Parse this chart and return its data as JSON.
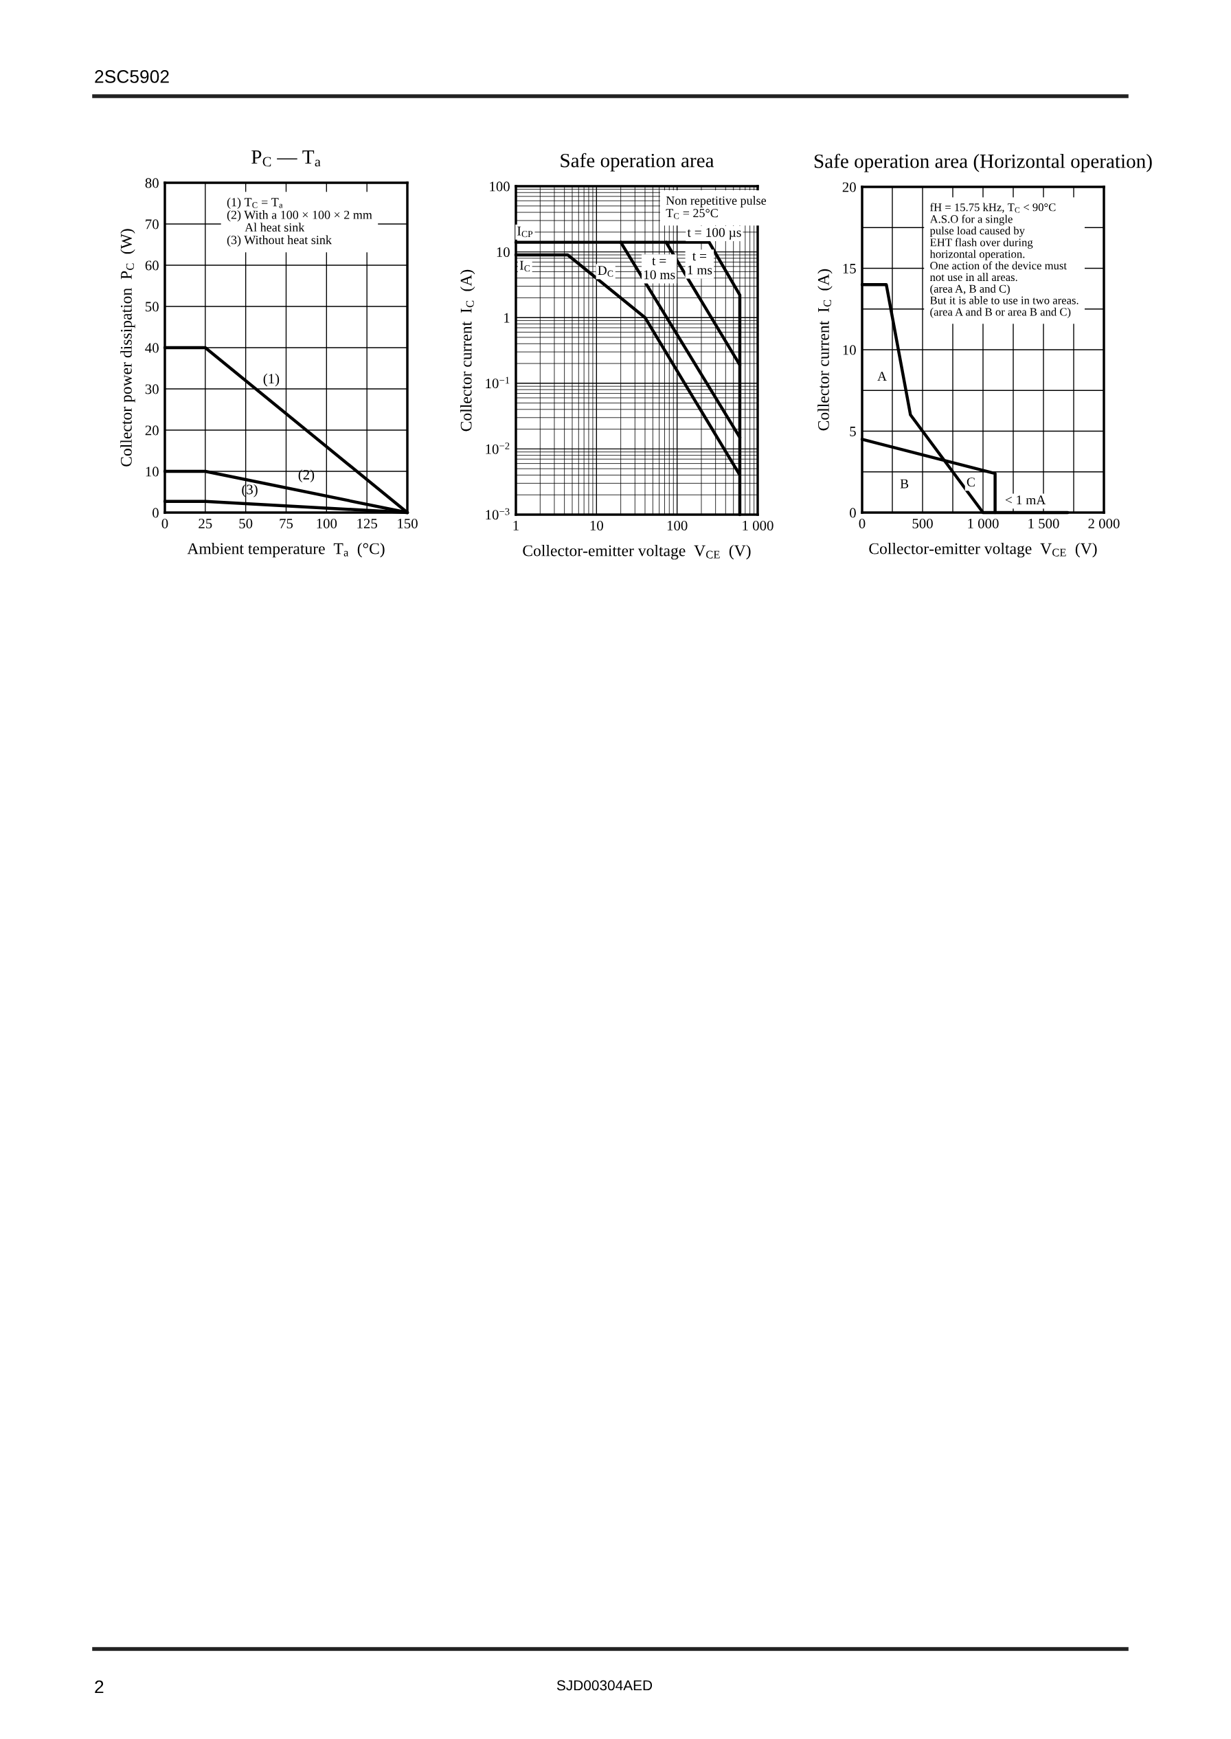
{
  "chart_data": [
    {
      "type": "line",
      "title": "P$_{C}$ — T$_{a}$",
      "xlabel": "Ambient temperature  T$_{a}$  (°C)",
      "ylabel": "Collector power dissipation  P$_{C}$  (W)",
      "xlim": [
        0,
        150
      ],
      "ylim": [
        0,
        80
      ],
      "xticks": [
        0,
        25,
        50,
        75,
        100,
        125,
        150
      ],
      "yticks": [
        0,
        10,
        20,
        30,
        40,
        50,
        60,
        70,
        80
      ],
      "grid": true,
      "series": [
        {
          "name": "(1)",
          "color": "#000000",
          "x": [
            0,
            25,
            150
          ],
          "values": [
            40,
            40,
            0
          ]
        },
        {
          "name": "(2)",
          "color": "#000000",
          "x": [
            0,
            25,
            150
          ],
          "values": [
            10,
            10,
            0
          ]
        },
        {
          "name": "(3)",
          "color": "#000000",
          "x": [
            0,
            25,
            150
          ],
          "values": [
            2.7,
            2.7,
            0
          ]
        }
      ],
      "annotations": [
        "(1) T$_{C}$ = T$_{a}$\n(2) With a 100 × 100 × 2 mm\n      Al heat sink\n(3) Without heat sink",
        "2SC5902",
        "2",
        "SJD00304AED"
      ]
    },
    {
      "type": "line",
      "title": "Safe operation area",
      "xlabel": "Collector-emitter voltage  V$_{CE}$  (V)",
      "ylabel": "Collector current  I$_{C}$  (A)",
      "log": "xy",
      "xlim": [
        1,
        1000
      ],
      "ylim": [
        0.001,
        100
      ],
      "xticks": [
        1,
        10,
        100,
        {
          "value": 1000,
          "label": "1 000"
        }
      ],
      "yticks": [
        {
          "value": 0.001,
          "label": "10$^{−3}$"
        },
        {
          "value": 0.01,
          "label": "10$^{−2}$"
        },
        {
          "value": 0.1,
          "label": "10$^{−1}$"
        },
        1,
        10,
        100
      ],
      "grid": true,
      "series": [
        {
          "color": "#000000",
          "x": [
            1,
            250,
            600,
            600
          ],
          "values": [
            14,
            14,
            2.2,
            0.001
          ]
        },
        {
          "color": "#000000",
          "x": [
            73,
            600
          ],
          "values": [
            14,
            0.19
          ]
        },
        {
          "color": "#000000",
          "x": [
            20,
            600
          ],
          "values": [
            14,
            0.015
          ]
        },
        {
          "color": "#000000",
          "x": [
            1,
            4.4,
            40,
            600
          ],
          "values": [
            9,
            9,
            1,
            0.004
          ]
        }
      ],
      "annotations": [
        "Non repetitive pulse\nT$_{C}$ = 25°C",
        "I$_{CP}$",
        "I$_{C}$",
        "D$_{C}$",
        "t =\n10 ms",
        "t =\n1 ms",
        "t = 100 µs"
      ]
    },
    {
      "type": "line",
      "title": "Safe operation area (Horizontal operation)",
      "xlabel": "Collector-emitter voltage  V$_{CE}$  (V)",
      "ylabel": "Collector current  I$_{C}$  (A)",
      "xlim": [
        0,
        2000
      ],
      "ylim": [
        0,
        20
      ],
      "xticks": [
        0,
        {
          "value": 250,
          "label": null
        },
        500,
        {
          "value": 750,
          "label": null
        },
        {
          "value": 1000,
          "label": "1 000"
        },
        {
          "value": 1250,
          "label": null
        },
        {
          "value": 1500,
          "label": "1 500"
        },
        {
          "value": 1750,
          "label": null
        },
        {
          "value": 2000,
          "label": "2 000"
        }
      ],
      "yticks": [
        0,
        {
          "value": 2.5,
          "label": null
        },
        5,
        {
          "value": 7.5,
          "label": null
        },
        10,
        {
          "value": 12.5,
          "label": null
        },
        15,
        {
          "value": 17.5,
          "label": null
        },
        20
      ],
      "grid": true,
      "series": [
        {
          "color": "#000000",
          "x": [
            0,
            200,
            400,
            1000,
            1100
          ],
          "values": [
            14,
            14,
            6,
            0,
            0
          ]
        },
        {
          "color": "#000000",
          "x": [
            0,
            1100,
            1100,
            1700
          ],
          "values": [
            4.5,
            2.4,
            0,
            0
          ]
        }
      ],
      "annotations": [
        "fH = 15.75 kHz, T$_{C}$ < 90°C\nA.S.O for a single\npulse load caused by\nEHT flash over during\nhorizontal operation.\nOne action of the device must\nnot use in all areas.\n(area A, B and C)\nBut it is able to use in two areas.\n(area A and B or area B and C)",
        "A",
        "B",
        "C",
        "< 1 mA"
      ]
    }
  ]
}
